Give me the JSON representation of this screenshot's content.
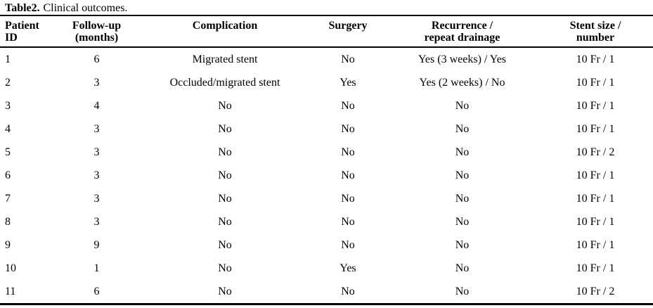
{
  "page": {
    "background": "#ffffff",
    "text_color": "#000000",
    "rule_color": "#000000"
  },
  "title": {
    "bold": "Table2.",
    "text": "Clinical outcomes."
  },
  "table": {
    "columns": [
      {
        "key": "patient-id",
        "label": "Patient ID",
        "lines": [
          "Patient",
          "ID"
        ],
        "align": "left"
      },
      {
        "key": "follow-up-months",
        "label": "Follow-up (months)",
        "lines": [
          "Follow-up",
          "(months)"
        ],
        "align": "center"
      },
      {
        "key": "complication",
        "label": "Complication",
        "lines": [
          "Complication"
        ],
        "align": "center"
      },
      {
        "key": "surgery",
        "label": "Surgery",
        "lines": [
          "Surgery"
        ],
        "align": "center"
      },
      {
        "key": "recurrence-repeat-drainage",
        "label": "Recurrence / repeat drainage",
        "lines": [
          "Recurrence /",
          "repeat drainage"
        ],
        "align": "center"
      },
      {
        "key": "stent-size-number",
        "label": "Stent size / number",
        "lines": [
          "Stent size /",
          "number"
        ],
        "align": "center"
      }
    ],
    "rows": [
      [
        "1",
        "6",
        "Migrated stent",
        "No",
        "Yes (3 weeks) / Yes",
        "10 Fr / 1"
      ],
      [
        "2",
        "3",
        "Occluded/migrated stent",
        "Yes",
        "Yes (2 weeks) / No",
        "10 Fr / 1"
      ],
      [
        "3",
        "4",
        "No",
        "No",
        "No",
        "10 Fr / 1"
      ],
      [
        "4",
        "3",
        "No",
        "No",
        "No",
        "10 Fr / 1"
      ],
      [
        "5",
        "3",
        "No",
        "No",
        "No",
        "10 Fr / 2"
      ],
      [
        "6",
        "3",
        "No",
        "No",
        "No",
        "10 Fr / 1"
      ],
      [
        "7",
        "3",
        "No",
        "No",
        "No",
        "10 Fr / 1"
      ],
      [
        "8",
        "3",
        "No",
        "No",
        "No",
        "10 Fr / 1"
      ],
      [
        "9",
        "9",
        "No",
        "No",
        "No",
        "10 Fr / 1"
      ],
      [
        "10",
        "1",
        "No",
        "Yes",
        "No",
        "10 Fr / 1"
      ],
      [
        "11",
        "6",
        "No",
        "No",
        "No",
        "10 Fr / 2"
      ]
    ]
  }
}
